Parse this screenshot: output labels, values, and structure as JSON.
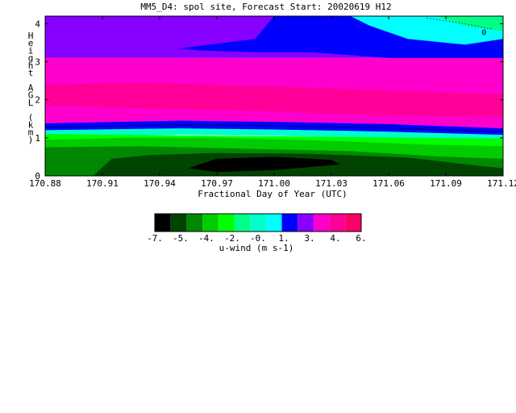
{
  "chart_data": {
    "type": "heatmap",
    "title": "MM5_D4: spol site,  Forecast Start: 20020619 H12",
    "xlabel": "Fractional Day of Year (UTC)",
    "ylabel_chars": [
      "H",
      "e",
      "i",
      "g",
      "h",
      "t",
      "",
      "A",
      "G",
      "L",
      "",
      "(",
      "k",
      "m",
      ")"
    ],
    "xlim": [
      170.88,
      171.12
    ],
    "ylim": [
      0,
      4.2
    ],
    "x_ticks": [
      {
        "value": 170.88,
        "label": "170.88"
      },
      {
        "value": 170.91,
        "label": "170.91"
      },
      {
        "value": 170.94,
        "label": "170.94"
      },
      {
        "value": 170.97,
        "label": "170.97"
      },
      {
        "value": 171.0,
        "label": "171.00"
      },
      {
        "value": 171.03,
        "label": "171.03"
      },
      {
        "value": 171.06,
        "label": "171.06"
      },
      {
        "value": 171.09,
        "label": "171.09"
      },
      {
        "value": 171.12,
        "label": "171.12"
      }
    ],
    "y_ticks": [
      {
        "value": 0,
        "label": "0"
      },
      {
        "value": 1,
        "label": "1"
      },
      {
        "value": 2,
        "label": "2"
      },
      {
        "value": 3,
        "label": "3"
      },
      {
        "value": 4,
        "label": "4"
      }
    ],
    "colorbar": {
      "label": "u-wind (m s-1)",
      "colors": [
        "#000000",
        "#004400",
        "#008800",
        "#00cc00",
        "#00ff00",
        "#00ff88",
        "#00ffcc",
        "#00ffff",
        "#0000ff",
        "#8800ff",
        "#ff00cc",
        "#ff0099",
        "#ff0066"
      ],
      "tick_labels": [
        "-7.",
        "-5.",
        "-4.",
        "-2.",
        "-0.",
        "1.",
        "3.",
        "4.",
        "6."
      ]
    },
    "contour_label": "0",
    "regions": [
      {
        "name": "upper-violet",
        "color": "#8800ff",
        "u_range": "1 to 3",
        "points": [
          [
            170.88,
            4.2
          ],
          [
            171.12,
            4.2
          ],
          [
            171.12,
            3.1
          ],
          [
            170.88,
            3.1
          ]
        ]
      },
      {
        "name": "upper-blue",
        "color": "#0000ff",
        "u_range": "-0 to 1",
        "points": [
          [
            171.0,
            4.2
          ],
          [
            171.12,
            4.2
          ],
          [
            171.12,
            3.0
          ],
          [
            171.1,
            2.9
          ],
          [
            171.06,
            3.1
          ],
          [
            171.02,
            3.25
          ],
          [
            170.99,
            3.25
          ],
          [
            170.96,
            3.3
          ],
          [
            170.95,
            3.35
          ],
          [
            170.99,
            3.6
          ],
          [
            171.0,
            4.2
          ]
        ]
      },
      {
        "name": "upper-cyan",
        "color": "#00ffff",
        "u_range": "-2 to -0",
        "points": [
          [
            171.04,
            4.2
          ],
          [
            171.12,
            4.2
          ],
          [
            171.12,
            3.6
          ],
          [
            171.1,
            3.45
          ],
          [
            171.07,
            3.6
          ],
          [
            171.05,
            3.95
          ],
          [
            171.04,
            4.2
          ]
        ]
      },
      {
        "name": "upper-lightgreen",
        "color": "#00ff88",
        "u_range": "-4 to -2",
        "points": [
          [
            171.085,
            4.2
          ],
          [
            171.12,
            4.2
          ],
          [
            171.12,
            3.8
          ],
          [
            171.1,
            3.95
          ],
          [
            171.085,
            4.2
          ]
        ]
      },
      {
        "name": "middle-pink",
        "color": "#ff00cc",
        "u_range": "4 to 6",
        "points": [
          [
            170.88,
            3.1
          ],
          [
            171.12,
            3.1
          ],
          [
            171.12,
            1.15
          ],
          [
            171.06,
            1.25
          ],
          [
            171.0,
            1.3
          ],
          [
            170.95,
            1.35
          ],
          [
            170.91,
            1.3
          ],
          [
            170.88,
            1.25
          ]
        ]
      },
      {
        "name": "middle-magenta",
        "color": "#ff0099",
        "u_range": "4 to 6",
        "points": [
          [
            170.88,
            2.4
          ],
          [
            170.93,
            2.45
          ],
          [
            171.0,
            2.35
          ],
          [
            171.08,
            2.2
          ],
          [
            171.12,
            2.15
          ],
          [
            171.12,
            1.55
          ],
          [
            171.05,
            1.6
          ],
          [
            171.0,
            1.7
          ],
          [
            170.95,
            1.75
          ],
          [
            170.88,
            1.85
          ]
        ]
      },
      {
        "name": "shear-blue",
        "color": "#0000ff",
        "u_range": "-0 to 1",
        "points": [
          [
            170.88,
            1.38
          ],
          [
            170.95,
            1.45
          ],
          [
            171.0,
            1.42
          ],
          [
            171.06,
            1.36
          ],
          [
            171.12,
            1.25
          ],
          [
            171.12,
            1.05
          ],
          [
            171.06,
            1.12
          ],
          [
            171.0,
            1.18
          ],
          [
            170.95,
            1.22
          ],
          [
            170.88,
            1.15
          ]
        ]
      },
      {
        "name": "low-cyan",
        "color": "#00ffcc",
        "u_range": "-2 to -0",
        "points": [
          [
            170.88,
            1.2
          ],
          [
            170.95,
            1.25
          ],
          [
            171.0,
            1.22
          ],
          [
            171.06,
            1.16
          ],
          [
            171.12,
            1.08
          ],
          [
            171.12,
            0.95
          ],
          [
            171.06,
            1.0
          ],
          [
            171.0,
            1.05
          ],
          [
            170.95,
            1.08
          ],
          [
            170.88,
            1.05
          ]
        ]
      },
      {
        "name": "low-green1",
        "color": "#00ff00",
        "u_range": "-4 to -2",
        "points": [
          [
            170.88,
            1.1
          ],
          [
            171.12,
            0.98
          ],
          [
            171.12,
            0.0
          ],
          [
            170.88,
            0.0
          ]
        ]
      },
      {
        "name": "low-green2",
        "color": "#00cc00",
        "u_range": "-5 to -4",
        "points": [
          [
            170.88,
            0.95
          ],
          [
            170.92,
            1.0
          ],
          [
            170.97,
            1.0
          ],
          [
            171.03,
            0.92
          ],
          [
            171.08,
            0.82
          ],
          [
            171.12,
            0.78
          ],
          [
            171.12,
            0.0
          ],
          [
            170.88,
            0.0
          ]
        ]
      },
      {
        "name": "low-green3",
        "color": "#008800",
        "u_range": "-7 to -5",
        "points": [
          [
            170.88,
            0.75
          ],
          [
            170.93,
            0.78
          ],
          [
            170.98,
            0.72
          ],
          [
            171.04,
            0.65
          ],
          [
            171.09,
            0.5
          ],
          [
            171.12,
            0.45
          ],
          [
            171.12,
            0.0
          ],
          [
            170.88,
            0.0
          ]
        ]
      },
      {
        "name": "low-darkgreen",
        "color": "#004400",
        "u_range": "< -7",
        "points": [
          [
            170.905,
            0.0
          ],
          [
            170.915,
            0.45
          ],
          [
            170.935,
            0.55
          ],
          [
            170.97,
            0.6
          ],
          [
            171.02,
            0.58
          ],
          [
            171.07,
            0.48
          ],
          [
            171.11,
            0.25
          ],
          [
            171.12,
            0.2
          ],
          [
            171.12,
            0.0
          ]
        ]
      },
      {
        "name": "low-black",
        "color": "#000000",
        "u_range": "< -7",
        "points": [
          [
            170.955,
            0.2
          ],
          [
            170.97,
            0.45
          ],
          [
            171.0,
            0.5
          ],
          [
            171.03,
            0.42
          ],
          [
            171.035,
            0.3
          ],
          [
            171.0,
            0.15
          ],
          [
            170.97,
            0.1
          ]
        ]
      }
    ]
  }
}
